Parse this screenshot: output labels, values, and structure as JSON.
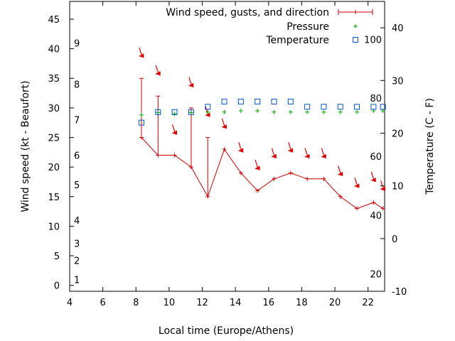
{
  "chart_data": {
    "type": "line",
    "xlabel": "Local time (Europe/Athens)",
    "ylabel_left": "Wind speed (kt - Beaufort)",
    "ylabel_right": "Temperature (C - F)",
    "xlim": [
      4,
      23
    ],
    "ylim_left": [
      -1,
      48
    ],
    "ylim_right": [
      -10,
      45
    ],
    "x_ticks": [
      "4",
      "6",
      "8",
      "10",
      "12",
      "14",
      "16",
      "18",
      "20",
      "22"
    ],
    "y_left_ticks": [
      "0",
      "5",
      "10",
      "15",
      "20",
      "25",
      "30",
      "35",
      "40",
      "45"
    ],
    "y_right_ticks": [
      "-10",
      "0",
      "10",
      "20",
      "30",
      "40"
    ],
    "beaufort_labels": [
      {
        "text": "1",
        "kt": 1
      },
      {
        "text": "2",
        "kt": 4.2
      },
      {
        "text": "3",
        "kt": 7.1
      },
      {
        "text": "4",
        "kt": 11
      },
      {
        "text": "5",
        "kt": 17
      },
      {
        "text": "6",
        "kt": 22
      },
      {
        "text": "7",
        "kt": 28
      },
      {
        "text": "8",
        "kt": 34
      },
      {
        "text": "9",
        "kt": 41
      }
    ],
    "fahrenheit_labels": [
      {
        "text": "20",
        "c": -6.7
      },
      {
        "text": "40",
        "c": 4.4
      },
      {
        "text": "60",
        "c": 15.6
      },
      {
        "text": "80",
        "c": 26.7
      },
      {
        "text": "100",
        "c": 37.8
      }
    ],
    "legend_position": "top-right",
    "series": [
      {
        "name": "Wind speed, gusts, and direction",
        "color": "#cc0000",
        "x": [
          8.33,
          9.33,
          10.33,
          11.33,
          12.33,
          13.33,
          14.33,
          15.33,
          16.33,
          17.33,
          18.33,
          19.33,
          20.33,
          21.33,
          22.33,
          22.9
        ],
        "wind": [
          25,
          22,
          22,
          20,
          15,
          23,
          19,
          16,
          18,
          19,
          18,
          18,
          15,
          13,
          14,
          13
        ],
        "gust": [
          35,
          32,
          null,
          30,
          25,
          null,
          null,
          null,
          null,
          null,
          null,
          null,
          null,
          null,
          null,
          null
        ],
        "arrows_kt": [
          39,
          36,
          26,
          34,
          29,
          27,
          23,
          20,
          22,
          23,
          22,
          22,
          19,
          17,
          18,
          16.5
        ]
      },
      {
        "name": "Pressure",
        "color": "#00aa00",
        "x": [
          8.33,
          9.33,
          10.33,
          11.33,
          12.33,
          13.33,
          14.33,
          15.33,
          16.33,
          17.33,
          18.33,
          19.33,
          20.33,
          21.33,
          22.33,
          22.9
        ],
        "kt": [
          28.8,
          29.2,
          29.0,
          29.2,
          29.3,
          29.3,
          29.5,
          29.5,
          29.3,
          29.3,
          29.3,
          29.3,
          29.3,
          29.3,
          29.5,
          29.5
        ]
      },
      {
        "name": "Temperature",
        "color": "#0055cc",
        "x": [
          8.33,
          9.33,
          10.33,
          11.33,
          12.33,
          13.33,
          14.33,
          15.33,
          16.33,
          17.33,
          18.33,
          19.33,
          20.33,
          21.33,
          22.33,
          22.9
        ],
        "celsius": [
          22,
          24,
          24,
          24,
          25,
          26,
          26,
          26,
          26,
          26,
          25,
          25,
          25,
          25,
          25,
          25
        ]
      }
    ]
  }
}
